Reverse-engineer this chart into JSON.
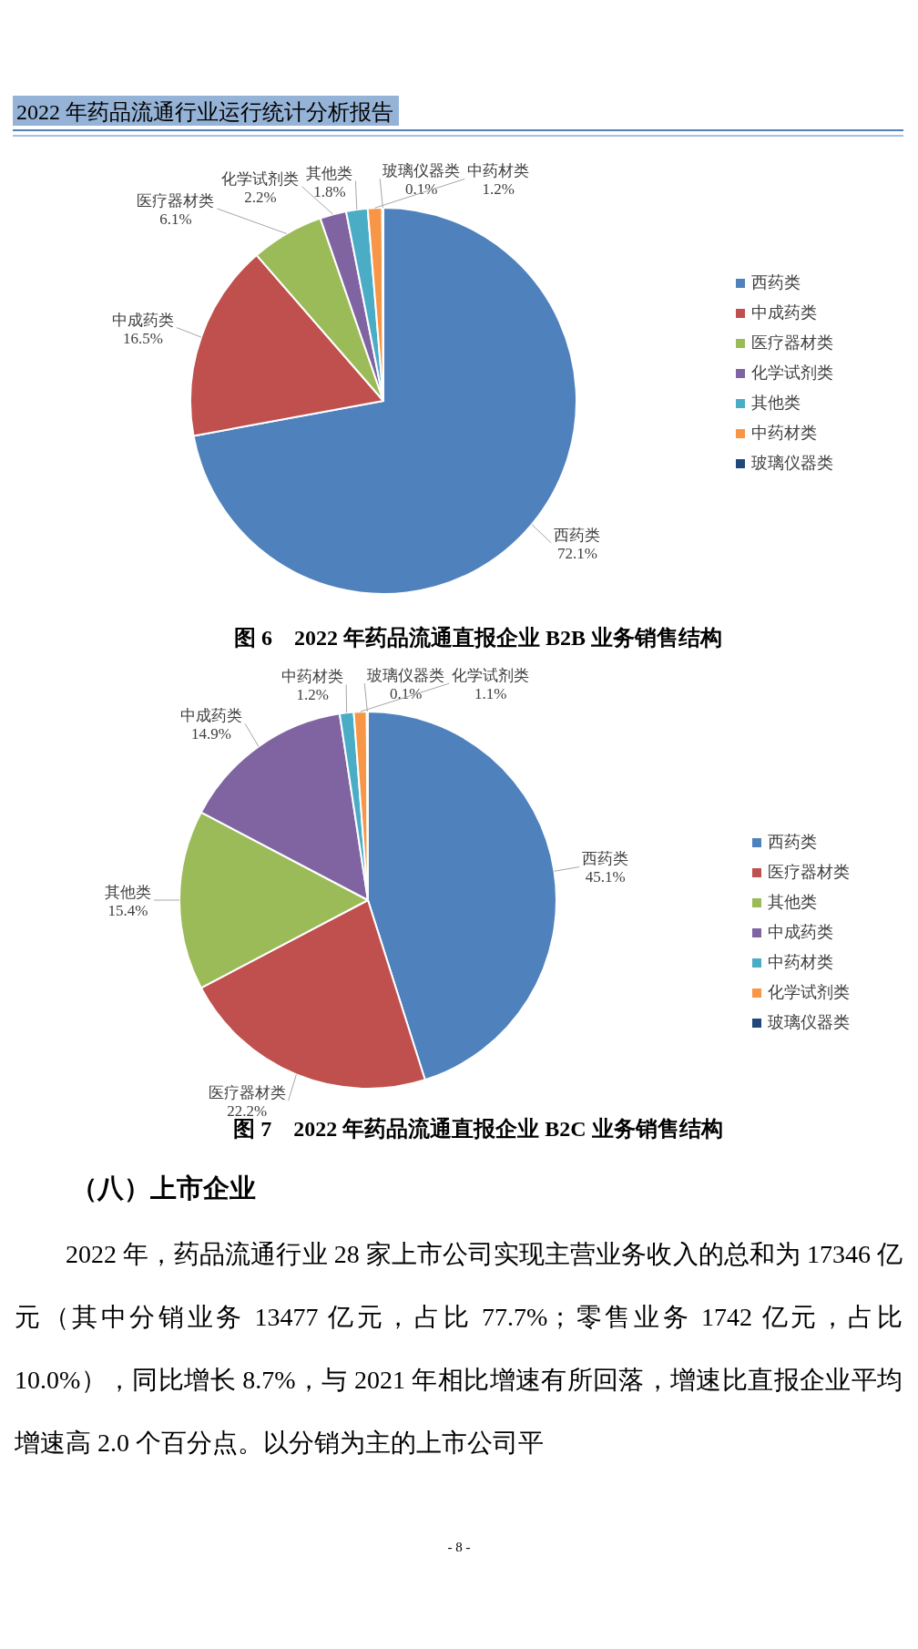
{
  "chart_data": [
    {
      "type": "pie",
      "title": "图 6　2022 年药品流通直报企业 B2B 业务销售结构",
      "categories": [
        "西药类",
        "中成药类",
        "医疗器材类",
        "化学试剂类",
        "其他类",
        "中药材类",
        "玻璃仪器类"
      ],
      "values": [
        72.1,
        16.5,
        6.1,
        2.2,
        1.8,
        1.2,
        0.1
      ],
      "value_labels": [
        "72.1%",
        "16.5%",
        "6.1%",
        "2.2%",
        "1.8%",
        "1.2%",
        "0.1%"
      ],
      "colors": [
        "#4f81bd",
        "#c0504d",
        "#9bbb59",
        "#8064a2",
        "#4bacc6",
        "#f79646",
        "#1f497d"
      ],
      "legend": "right",
      "annotations": [
        "2022 年药品流通行业运行统计分析报告"
      ]
    },
    {
      "type": "pie",
      "title": "图 7　2022 年药品流通直报企业 B2C 业务销售结构",
      "categories": [
        "西药类",
        "医疗器材类",
        "其他类",
        "中成药类",
        "中药材类",
        "化学试剂类",
        "玻璃仪器类"
      ],
      "values": [
        45.1,
        22.2,
        15.4,
        14.9,
        1.2,
        1.1,
        0.1
      ],
      "value_labels": [
        "45.1%",
        "22.2%",
        "15.4%",
        "14.9%",
        "1.2%",
        "1.1%",
        "0.1%"
      ],
      "colors": [
        "#4f81bd",
        "#c0504d",
        "#9bbb59",
        "#8064a2",
        "#4bacc6",
        "#f79646",
        "#1f497d"
      ],
      "legend": "right",
      "annotations": [
        "（八）上市企业",
        "2022 年，药品流通行业 28 家上市公司实现主营业务收入的总和为 17346 亿元（其中分销业务 13477 亿元，占比 77.7%；零售业务 1742 亿元，占比 10.0%），同比增长 8.7%，与 2021 年相比增速有所回落，增速比直报企业平均增速高 2.0 个百分点。以分销为主的上市公司平",
        "- 8 -"
      ]
    }
  ]
}
